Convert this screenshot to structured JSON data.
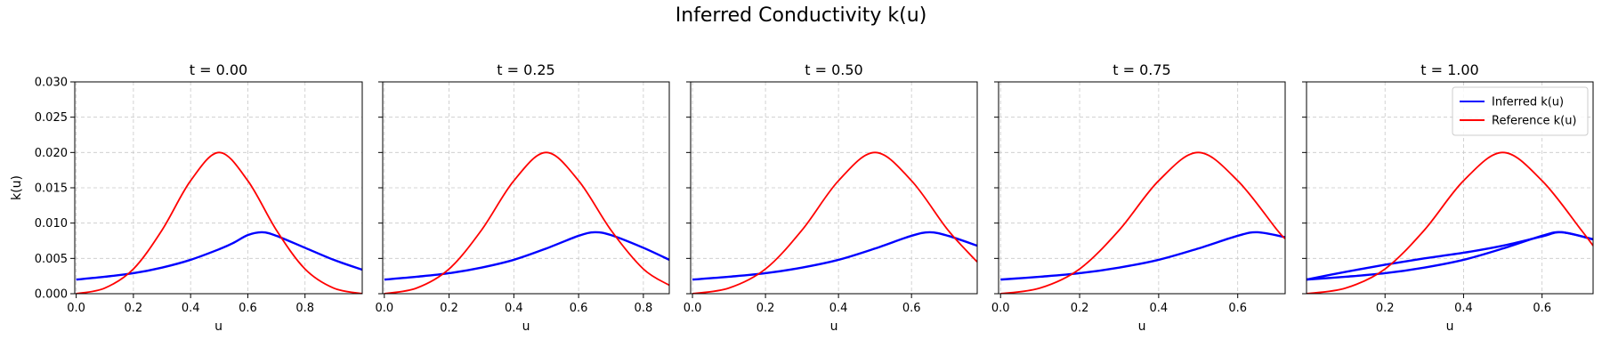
{
  "figure": {
    "title": "Inferred Conductivity k(u)"
  },
  "colors": {
    "inferred": "#0000ff",
    "reference": "#ff0000",
    "grid": "#c8c8c8"
  },
  "chart_data": [
    {
      "type": "line",
      "title": "t = 0.00",
      "xlabel": "u",
      "ylabel": "k(u)",
      "xlim": [
        -0.005,
        1.0
      ],
      "ylim": [
        0.0,
        0.03
      ],
      "xticks": [
        "0.0",
        "0.2",
        "0.4",
        "0.6",
        "0.8"
      ],
      "yticks": [
        "0.000",
        "0.005",
        "0.010",
        "0.015",
        "0.020",
        "0.025",
        "0.030"
      ],
      "grid": true,
      "series": [
        {
          "name": "Inferred k(u)",
          "color": "#0000ff",
          "x": [
            0.0,
            0.1,
            0.2,
            0.3,
            0.4,
            0.5,
            0.55,
            0.6,
            0.65,
            0.7,
            0.8,
            0.9,
            1.0
          ],
          "y": [
            0.002,
            0.0024,
            0.0029,
            0.0037,
            0.0048,
            0.0063,
            0.0072,
            0.0083,
            0.0087,
            0.0082,
            0.0065,
            0.0048,
            0.0034
          ]
        },
        {
          "name": "Reference k(u)",
          "color": "#ff0000",
          "x": [
            0.0,
            0.1,
            0.2,
            0.3,
            0.4,
            0.5,
            0.6,
            0.7,
            0.8,
            0.9,
            1.0
          ],
          "y": [
            0.0,
            0.0008,
            0.0035,
            0.009,
            0.016,
            0.02,
            0.016,
            0.009,
            0.0035,
            0.0008,
            0.0
          ]
        }
      ]
    },
    {
      "type": "line",
      "title": "t = 0.25",
      "xlabel": "u",
      "ylim": [
        0.0,
        0.03
      ],
      "xlim": [
        -0.005,
        0.88
      ],
      "xticks": [
        "0.0",
        "0.2",
        "0.4",
        "0.6",
        "0.8"
      ],
      "grid": true,
      "series": [
        {
          "name": "Inferred k(u)",
          "color": "#0000ff",
          "x": [
            0.0,
            0.1,
            0.2,
            0.3,
            0.4,
            0.5,
            0.6,
            0.65,
            0.7,
            0.8,
            0.88
          ],
          "y": [
            0.002,
            0.0024,
            0.0029,
            0.0037,
            0.0048,
            0.0064,
            0.0082,
            0.0087,
            0.0083,
            0.0065,
            0.0048
          ]
        },
        {
          "name": "Reference k(u)",
          "color": "#ff0000",
          "x": [
            0.0,
            0.1,
            0.2,
            0.3,
            0.4,
            0.5,
            0.6,
            0.7,
            0.8,
            0.88
          ],
          "y": [
            0.0,
            0.0008,
            0.0035,
            0.009,
            0.016,
            0.02,
            0.016,
            0.009,
            0.0035,
            0.0012
          ]
        }
      ]
    },
    {
      "type": "line",
      "title": "t = 0.50",
      "xlabel": "u",
      "ylim": [
        0.0,
        0.03
      ],
      "xlim": [
        -0.005,
        0.78
      ],
      "xticks": [
        "0.0",
        "0.2",
        "0.4",
        "0.6"
      ],
      "grid": true,
      "series": [
        {
          "name": "Inferred k(u)",
          "color": "#0000ff",
          "x": [
            0.0,
            0.1,
            0.2,
            0.3,
            0.4,
            0.5,
            0.6,
            0.65,
            0.7,
            0.78
          ],
          "y": [
            0.002,
            0.0024,
            0.0029,
            0.0037,
            0.0048,
            0.0064,
            0.0082,
            0.0087,
            0.0082,
            0.0068
          ]
        },
        {
          "name": "Reference k(u)",
          "color": "#ff0000",
          "x": [
            0.0,
            0.1,
            0.2,
            0.3,
            0.4,
            0.5,
            0.6,
            0.7,
            0.78
          ],
          "y": [
            0.0,
            0.0008,
            0.0035,
            0.009,
            0.016,
            0.02,
            0.016,
            0.009,
            0.0045
          ]
        }
      ]
    },
    {
      "type": "line",
      "title": "t = 0.75",
      "xlabel": "u",
      "ylim": [
        0.0,
        0.03
      ],
      "xlim": [
        -0.005,
        0.72
      ],
      "xticks": [
        "0.0",
        "0.2",
        "0.4",
        "0.6"
      ],
      "grid": true,
      "series": [
        {
          "name": "Inferred k(u)",
          "color": "#0000ff",
          "x": [
            0.0,
            0.1,
            0.2,
            0.3,
            0.4,
            0.5,
            0.6,
            0.65,
            0.72
          ],
          "y": [
            0.002,
            0.0024,
            0.0029,
            0.0037,
            0.0048,
            0.0064,
            0.0082,
            0.0087,
            0.008
          ]
        },
        {
          "name": "Reference k(u)",
          "color": "#ff0000",
          "x": [
            0.0,
            0.1,
            0.2,
            0.3,
            0.4,
            0.5,
            0.6,
            0.7,
            0.72
          ],
          "y": [
            0.0,
            0.0008,
            0.0035,
            0.009,
            0.016,
            0.02,
            0.016,
            0.009,
            0.0078
          ]
        }
      ]
    },
    {
      "type": "line",
      "title": "t = 1.00",
      "xlabel": "u",
      "ylim": [
        0.0,
        0.03
      ],
      "xlim": [
        0.0,
        0.73
      ],
      "xticks": [
        "0.2",
        "0.4",
        "0.6"
      ],
      "grid": true,
      "legend": "top-right",
      "series": [
        {
          "name": "Inferred k(u)",
          "color": "#0000ff",
          "x": [
            0.0,
            0.1,
            0.2,
            0.3,
            0.4,
            0.5,
            0.6,
            0.65,
            0.73
          ],
          "y": [
            0.002,
            0.0024,
            0.0029,
            0.0037,
            0.0048,
            0.0064,
            0.0082,
            0.0087,
            0.0077
          ]
        },
        {
          "name": "Inferred k(u)",
          "color": "#0000ff",
          "x": [
            0.0,
            0.1,
            0.2,
            0.3,
            0.4,
            0.5,
            0.6,
            0.65,
            0.73
          ],
          "y": [
            0.002,
            0.0031,
            0.0041,
            0.005,
            0.0058,
            0.0068,
            0.0081,
            0.0087,
            0.0077
          ]
        },
        {
          "name": "Reference k(u)",
          "color": "#ff0000",
          "x": [
            0.0,
            0.1,
            0.2,
            0.3,
            0.4,
            0.5,
            0.6,
            0.7,
            0.73
          ],
          "y": [
            0.0,
            0.0008,
            0.0035,
            0.009,
            0.016,
            0.02,
            0.016,
            0.009,
            0.0068
          ]
        }
      ]
    }
  ]
}
